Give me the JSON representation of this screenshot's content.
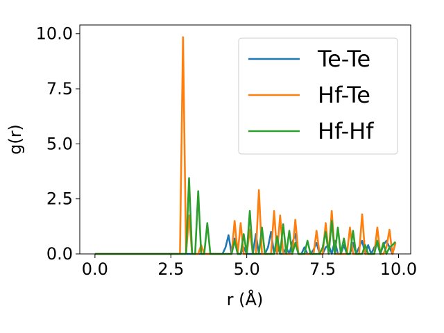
{
  "chart_data": {
    "type": "line",
    "xlabel": "r (Å)",
    "ylabel": "g(r)",
    "xlim": [
      -0.5,
      10.4
    ],
    "ylim": [
      0,
      10.4
    ],
    "xticks": [
      "0.0",
      "2.5",
      "5.0",
      "7.5",
      "10.0"
    ],
    "yticks": [
      "0.0",
      "2.5",
      "5.0",
      "7.5",
      "10.0"
    ],
    "grid": false,
    "legend_position": "top-right",
    "series": [
      {
        "name": "Te-Te",
        "color": "#1f77b4",
        "x": [
          0.0,
          4.2,
          4.3,
          4.4,
          4.5,
          4.6,
          4.7,
          4.8,
          4.9,
          5.0,
          5.1,
          5.2,
          5.3,
          5.4,
          5.5,
          5.6,
          5.7,
          5.8,
          5.9,
          6.0,
          6.1,
          6.2,
          6.3,
          6.4,
          6.5,
          6.6,
          6.7,
          6.8,
          6.9,
          7.0,
          7.1,
          7.2,
          7.3,
          7.4,
          7.5,
          7.6,
          7.7,
          7.8,
          7.9,
          8.0,
          8.1,
          8.2,
          8.3,
          8.4,
          8.5,
          8.6,
          8.7,
          8.8,
          8.9,
          9.0,
          9.1,
          9.2,
          9.3,
          9.4,
          9.5,
          9.6,
          9.7,
          9.8,
          9.9
        ],
        "y": [
          0.0,
          0.0,
          0.3,
          0.85,
          0.0,
          0.7,
          0.0,
          0.0,
          0.3,
          0.0,
          0.0,
          0.0,
          0.9,
          0.0,
          0.0,
          0.0,
          0.3,
          1.0,
          0.0,
          0.4,
          0.0,
          0.0,
          0.3,
          0.0,
          0.5,
          0.9,
          0.0,
          0.0,
          0.3,
          0.0,
          0.0,
          0.2,
          0.5,
          0.0,
          0.0,
          0.3,
          0.4,
          0.0,
          0.6,
          0.0,
          0.0,
          0.4,
          0.0,
          0.0,
          0.5,
          0.0,
          0.3,
          0.6,
          0.0,
          0.4,
          0.0,
          0.3,
          0.5,
          0.0,
          0.4,
          0.6,
          0.3,
          0.0,
          0.5
        ]
      },
      {
        "name": "Hf-Te",
        "color": "#ff7f0e",
        "x": [
          0.0,
          2.8,
          2.9,
          3.0,
          3.1,
          3.2,
          3.3,
          3.4,
          3.5,
          3.6,
          3.7,
          3.8,
          3.9,
          4.0,
          4.1,
          4.2,
          4.3,
          4.4,
          4.5,
          4.6,
          4.7,
          4.8,
          4.9,
          5.0,
          5.1,
          5.2,
          5.3,
          5.4,
          5.5,
          5.6,
          5.7,
          5.8,
          5.9,
          6.0,
          6.1,
          6.2,
          6.3,
          6.4,
          6.5,
          6.6,
          6.7,
          6.8,
          6.9,
          7.0,
          7.1,
          7.2,
          7.3,
          7.4,
          7.5,
          7.6,
          7.7,
          7.8,
          7.9,
          8.0,
          8.1,
          8.2,
          8.3,
          8.4,
          8.5,
          8.6,
          8.7,
          8.8,
          8.9,
          9.0,
          9.1,
          9.2,
          9.3,
          9.4,
          9.5,
          9.6,
          9.7,
          9.8,
          9.9
        ],
        "y": [
          0.0,
          0.0,
          9.85,
          0.0,
          1.75,
          0.0,
          0.0,
          0.0,
          0.4,
          0.0,
          0.0,
          0.0,
          0.0,
          0.0,
          0.0,
          0.0,
          0.0,
          0.0,
          0.0,
          1.5,
          0.0,
          1.4,
          0.0,
          0.0,
          1.1,
          0.0,
          0.0,
          2.9,
          0.0,
          0.0,
          0.0,
          0.0,
          1.95,
          0.0,
          1.75,
          0.0,
          0.0,
          0.0,
          0.0,
          1.55,
          0.0,
          0.0,
          0.0,
          0.0,
          0.0,
          0.0,
          1.05,
          0.0,
          0.0,
          1.4,
          0.0,
          1.95,
          0.0,
          0.0,
          0.0,
          0.0,
          0.0,
          1.2,
          0.0,
          0.0,
          0.0,
          1.8,
          0.0,
          0.0,
          0.0,
          0.0,
          1.2,
          0.0,
          0.0,
          0.3,
          1.1,
          0.0,
          0.5
        ]
      },
      {
        "name": "Hf-Hf",
        "color": "#2ca02c",
        "x": [
          0.0,
          2.9,
          3.0,
          3.1,
          3.2,
          3.3,
          3.4,
          3.5,
          3.6,
          3.7,
          3.8,
          3.9,
          4.0,
          4.1,
          4.2,
          4.3,
          4.4,
          4.5,
          4.6,
          4.7,
          4.8,
          4.9,
          5.0,
          5.1,
          5.2,
          5.3,
          5.4,
          5.5,
          5.6,
          5.7,
          5.8,
          5.9,
          6.0,
          6.1,
          6.2,
          6.3,
          6.4,
          6.5,
          6.6,
          6.7,
          6.8,
          6.9,
          7.0,
          7.1,
          7.2,
          7.3,
          7.4,
          7.5,
          7.6,
          7.7,
          7.8,
          7.9,
          8.0,
          8.1,
          8.2,
          8.3,
          8.4,
          8.5,
          8.6,
          8.7,
          8.8,
          8.9,
          9.0,
          9.1,
          9.2,
          9.3,
          9.4,
          9.5,
          9.6,
          9.7,
          9.8,
          9.9
        ],
        "y": [
          0.0,
          0.0,
          0.0,
          3.45,
          0.0,
          0.0,
          2.85,
          0.0,
          0.0,
          1.4,
          0.0,
          0.0,
          0.0,
          0.0,
          0.0,
          0.0,
          0.0,
          0.0,
          0.6,
          0.0,
          0.0,
          0.9,
          0.0,
          1.95,
          0.0,
          0.0,
          0.0,
          1.2,
          0.0,
          0.0,
          0.0,
          0.0,
          0.8,
          0.0,
          1.35,
          0.0,
          1.05,
          0.0,
          0.5,
          0.0,
          0.0,
          0.0,
          0.6,
          0.0,
          0.0,
          0.0,
          0.0,
          0.3,
          1.0,
          0.0,
          1.5,
          0.0,
          1.2,
          0.0,
          0.7,
          0.0,
          0.0,
          1.05,
          0.0,
          0.0,
          0.0,
          0.4,
          0.0,
          0.0,
          0.0,
          0.6,
          0.0,
          0.5,
          0.0,
          0.3,
          0.4,
          0.55
        ]
      }
    ]
  }
}
